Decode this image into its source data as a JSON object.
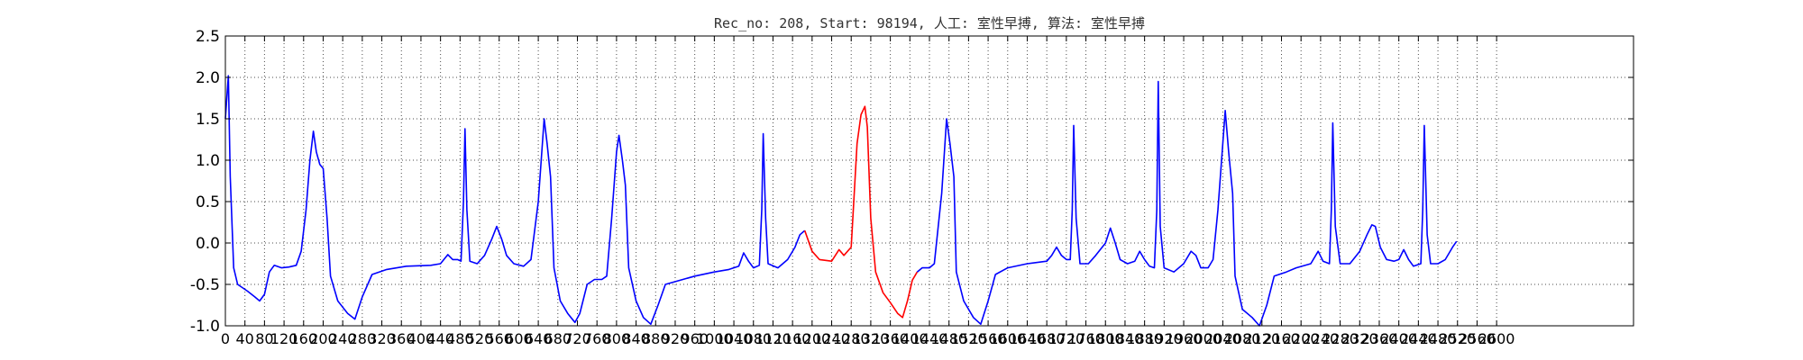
{
  "chart_data": {
    "type": "line",
    "title": "Rec_no: 208, Start: 98194, 人工: 室性早搏, 算法: 室性早搏",
    "xlabel": "",
    "ylabel": "",
    "xlim": [
      0,
      2880
    ],
    "ylim": [
      -1.0,
      2.5
    ],
    "grid": true,
    "y_ticks": [
      -1.0,
      -0.5,
      0.0,
      0.5,
      1.0,
      1.5,
      2.0,
      2.5
    ],
    "x_ticks": [
      0,
      40,
      80,
      120,
      160,
      200,
      240,
      280,
      320,
      360,
      400,
      440,
      480,
      520,
      560,
      600,
      640,
      680,
      720,
      760,
      800,
      840,
      880,
      920,
      960,
      1000,
      1040,
      1080,
      1120,
      1160,
      1200,
      1240,
      1280,
      1320,
      1360,
      1400,
      1440,
      1480,
      1520,
      1560,
      1600,
      1640,
      1680,
      1720,
      1760,
      1800,
      1840,
      1880,
      1920,
      1960,
      2000,
      2040,
      2080,
      2120,
      2160,
      2200,
      2240,
      2280,
      2320,
      2360,
      2400,
      2440,
      2480,
      2520,
      2560,
      2600
    ],
    "x_tick_labels": [
      "0",
      "40",
      "80",
      "120",
      "160",
      "200",
      "240",
      "280",
      "320",
      "360",
      "400",
      "440",
      "480",
      "520",
      "560",
      "600",
      "640",
      "680",
      "720",
      "760",
      "800",
      "840",
      "880",
      "920",
      "960",
      "1000",
      "1040",
      "1080",
      "1120",
      "1160",
      "1200",
      "1240",
      "1280",
      "1320",
      "1360",
      "1400",
      "1440",
      "1480",
      "1520",
      "1560",
      "1600",
      "1640",
      "1680",
      "1720",
      "1760",
      "1800",
      "1840",
      "1880",
      "1920",
      "1960",
      "2000",
      "2040",
      "2080",
      "2120",
      "2160",
      "2200",
      "2240",
      "2280",
      "2320",
      "2360",
      "2400",
      "2440",
      "2480",
      "2520",
      "2560",
      "2600"
    ],
    "colors": {
      "signal": "#0000ff",
      "highlight": "#ff0000"
    },
    "series": [
      {
        "color": "#0000ff",
        "points": [
          [
            0,
            1.5
          ],
          [
            6,
            2.02
          ],
          [
            10,
            0.8
          ],
          [
            17,
            -0.3
          ],
          [
            25,
            -0.5
          ],
          [
            45,
            -0.58
          ],
          [
            60,
            -0.65
          ],
          [
            70,
            -0.7
          ],
          [
            80,
            -0.62
          ],
          [
            90,
            -0.35
          ],
          [
            100,
            -0.27
          ],
          [
            115,
            -0.3
          ],
          [
            130,
            -0.29
          ],
          [
            145,
            -0.27
          ],
          [
            155,
            -0.1
          ],
          [
            165,
            0.4
          ],
          [
            173,
            1.0
          ],
          [
            180,
            1.35
          ],
          [
            186,
            1.1
          ],
          [
            193,
            0.95
          ],
          [
            200,
            0.9
          ],
          [
            208,
            0.3
          ],
          [
            215,
            -0.4
          ],
          [
            230,
            -0.7
          ],
          [
            250,
            -0.85
          ],
          [
            265,
            -0.92
          ],
          [
            280,
            -0.65
          ],
          [
            300,
            -0.38
          ],
          [
            330,
            -0.32
          ],
          [
            370,
            -0.28
          ],
          [
            420,
            -0.27
          ],
          [
            440,
            -0.25
          ],
          [
            455,
            -0.14
          ],
          [
            465,
            -0.2
          ],
          [
            475,
            -0.2
          ],
          [
            482,
            -0.22
          ],
          [
            487,
            0.5
          ],
          [
            490,
            1.38
          ],
          [
            494,
            0.4
          ],
          [
            500,
            -0.22
          ],
          [
            515,
            -0.25
          ],
          [
            530,
            -0.15
          ],
          [
            545,
            0.05
          ],
          [
            555,
            0.2
          ],
          [
            565,
            0.05
          ],
          [
            575,
            -0.15
          ],
          [
            590,
            -0.25
          ],
          [
            610,
            -0.28
          ],
          [
            625,
            -0.2
          ],
          [
            640,
            0.5
          ],
          [
            652,
            1.5
          ],
          [
            658,
            1.2
          ],
          [
            665,
            0.8
          ],
          [
            672,
            -0.3
          ],
          [
            685,
            -0.7
          ],
          [
            700,
            -0.85
          ],
          [
            715,
            -0.96
          ],
          [
            725,
            -0.85
          ],
          [
            740,
            -0.5
          ],
          [
            755,
            -0.44
          ],
          [
            770,
            -0.44
          ],
          [
            780,
            -0.4
          ],
          [
            790,
            0.3
          ],
          [
            800,
            1.1
          ],
          [
            805,
            1.3
          ],
          [
            812,
            1.0
          ],
          [
            818,
            0.7
          ],
          [
            825,
            -0.3
          ],
          [
            840,
            -0.7
          ],
          [
            855,
            -0.9
          ],
          [
            870,
            -0.98
          ],
          [
            885,
            -0.75
          ],
          [
            900,
            -0.5
          ],
          [
            930,
            -0.45
          ],
          [
            960,
            -0.4
          ],
          [
            1000,
            -0.35
          ],
          [
            1030,
            -0.32
          ],
          [
            1050,
            -0.28
          ],
          [
            1060,
            -0.12
          ],
          [
            1070,
            -0.22
          ],
          [
            1080,
            -0.3
          ],
          [
            1092,
            -0.27
          ],
          [
            1097,
            0.4
          ],
          [
            1100,
            1.32
          ],
          [
            1105,
            0.3
          ],
          [
            1110,
            -0.25
          ],
          [
            1130,
            -0.3
          ],
          [
            1150,
            -0.2
          ],
          [
            1165,
            -0.05
          ],
          [
            1175,
            0.1
          ],
          [
            1185,
            0.15
          ]
        ]
      },
      {
        "color": "#ff0000",
        "points": [
          [
            1185,
            0.15
          ],
          [
            1200,
            -0.1
          ],
          [
            1215,
            -0.2
          ],
          [
            1240,
            -0.22
          ],
          [
            1255,
            -0.08
          ],
          [
            1265,
            -0.15
          ],
          [
            1280,
            -0.05
          ],
          [
            1292,
            1.2
          ],
          [
            1300,
            1.55
          ],
          [
            1308,
            1.65
          ],
          [
            1313,
            1.4
          ],
          [
            1320,
            0.3
          ],
          [
            1330,
            -0.35
          ],
          [
            1345,
            -0.6
          ],
          [
            1360,
            -0.72
          ],
          [
            1375,
            -0.85
          ],
          [
            1385,
            -0.9
          ],
          [
            1395,
            -0.7
          ],
          [
            1405,
            -0.45
          ],
          [
            1415,
            -0.35
          ]
        ]
      },
      {
        "color": "#0000ff",
        "points": [
          [
            1415,
            -0.35
          ],
          [
            1425,
            -0.3
          ],
          [
            1440,
            -0.3
          ],
          [
            1450,
            -0.25
          ],
          [
            1465,
            0.6
          ],
          [
            1475,
            1.5
          ],
          [
            1482,
            1.2
          ],
          [
            1490,
            0.8
          ],
          [
            1495,
            -0.35
          ],
          [
            1510,
            -0.7
          ],
          [
            1530,
            -0.9
          ],
          [
            1545,
            -0.98
          ],
          [
            1560,
            -0.7
          ],
          [
            1575,
            -0.38
          ],
          [
            1600,
            -0.3
          ],
          [
            1640,
            -0.25
          ],
          [
            1680,
            -0.22
          ],
          [
            1690,
            -0.15
          ],
          [
            1700,
            -0.05
          ],
          [
            1710,
            -0.15
          ],
          [
            1720,
            -0.2
          ],
          [
            1728,
            -0.2
          ],
          [
            1732,
            0.4
          ],
          [
            1735,
            1.42
          ],
          [
            1740,
            0.3
          ],
          [
            1748,
            -0.25
          ],
          [
            1765,
            -0.25
          ],
          [
            1780,
            -0.15
          ],
          [
            1800,
            0.0
          ],
          [
            1810,
            0.18
          ],
          [
            1820,
            0.0
          ],
          [
            1830,
            -0.2
          ],
          [
            1845,
            -0.25
          ],
          [
            1860,
            -0.22
          ],
          [
            1870,
            -0.1
          ],
          [
            1880,
            -0.2
          ],
          [
            1890,
            -0.28
          ],
          [
            1900,
            -0.3
          ],
          [
            1905,
            0.4
          ],
          [
            1908,
            1.95
          ],
          [
            1912,
            0.2
          ],
          [
            1920,
            -0.3
          ],
          [
            1940,
            -0.35
          ],
          [
            1960,
            -0.25
          ],
          [
            1975,
            -0.1
          ],
          [
            1985,
            -0.15
          ],
          [
            1995,
            -0.3
          ],
          [
            2010,
            -0.3
          ],
          [
            2020,
            -0.2
          ],
          [
            2030,
            0.4
          ],
          [
            2040,
            1.2
          ],
          [
            2045,
            1.6
          ],
          [
            2052,
            1.1
          ],
          [
            2060,
            0.6
          ],
          [
            2065,
            -0.4
          ],
          [
            2080,
            -0.8
          ],
          [
            2100,
            -0.9
          ],
          [
            2115,
            -1.0
          ],
          [
            2130,
            -0.75
          ],
          [
            2145,
            -0.4
          ],
          [
            2170,
            -0.35
          ],
          [
            2190,
            -0.3
          ],
          [
            2220,
            -0.25
          ],
          [
            2235,
            -0.1
          ],
          [
            2245,
            -0.22
          ],
          [
            2258,
            -0.25
          ],
          [
            2262,
            0.4
          ],
          [
            2265,
            1.45
          ],
          [
            2270,
            0.2
          ],
          [
            2280,
            -0.25
          ],
          [
            2300,
            -0.25
          ],
          [
            2320,
            -0.1
          ],
          [
            2335,
            0.1
          ],
          [
            2345,
            0.22
          ],
          [
            2352,
            0.2
          ],
          [
            2362,
            -0.05
          ],
          [
            2375,
            -0.2
          ],
          [
            2390,
            -0.22
          ],
          [
            2400,
            -0.2
          ],
          [
            2410,
            -0.08
          ],
          [
            2420,
            -0.2
          ],
          [
            2430,
            -0.28
          ],
          [
            2445,
            -0.25
          ],
          [
            2449,
            0.4
          ],
          [
            2452,
            1.42
          ],
          [
            2458,
            0.1
          ],
          [
            2465,
            -0.25
          ],
          [
            2480,
            -0.25
          ],
          [
            2495,
            -0.2
          ],
          [
            2510,
            -0.05
          ],
          [
            2518,
            0.02
          ]
        ]
      }
    ]
  }
}
